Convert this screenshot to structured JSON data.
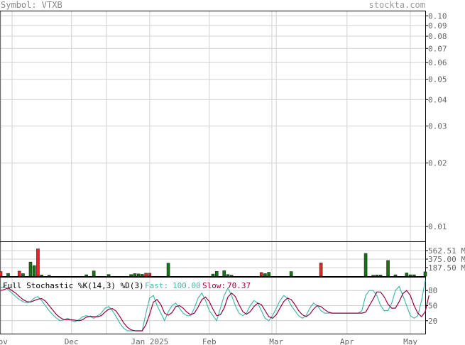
{
  "header": {
    "symbol_label": "Symbol: VTXB",
    "site": "stockta.com"
  },
  "chart_data": {
    "type": "line",
    "title": "Symbol: VTXB",
    "price_panel": {
      "scale": "log",
      "ylim": [
        0.0085,
        0.105
      ],
      "tick_labels": [
        "0.10",
        "0.09",
        "0.08",
        "0.07",
        "0.06",
        "0.05",
        "0.04",
        "0.03",
        "0.02",
        "0.01"
      ],
      "tick_values": [
        0.1,
        0.09,
        0.08,
        0.07,
        0.06,
        0.05,
        0.04,
        0.03,
        0.02,
        0.01
      ],
      "grid": true
    },
    "volume_panel": {
      "type": "bar",
      "ylim": [
        0,
        750
      ],
      "tick_labels": [
        "562.51 M",
        "375.00 M",
        "187.50 M"
      ],
      "tick_values": [
        562.51,
        375.0,
        187.5
      ],
      "bars": [
        {
          "d": 0,
          "v": 100,
          "c": "r"
        },
        {
          "d": 2,
          "v": 60,
          "c": "g"
        },
        {
          "d": 5,
          "v": 110,
          "c": "r"
        },
        {
          "d": 6,
          "v": 55,
          "c": "g"
        },
        {
          "d": 8,
          "v": 310,
          "c": "g"
        },
        {
          "d": 9,
          "v": 230,
          "c": "g"
        },
        {
          "d": 10,
          "v": 600,
          "c": "r"
        },
        {
          "d": 11,
          "v": 25,
          "c": "g"
        },
        {
          "d": 13,
          "v": 20,
          "c": "g"
        },
        {
          "d": 23,
          "v": 30,
          "c": "g"
        },
        {
          "d": 25,
          "v": 115,
          "c": "g"
        },
        {
          "d": 29,
          "v": 35,
          "c": "g"
        },
        {
          "d": 35,
          "v": 35,
          "c": "g"
        },
        {
          "d": 36,
          "v": 55,
          "c": "g"
        },
        {
          "d": 37,
          "v": 50,
          "c": "g"
        },
        {
          "d": 38,
          "v": 40,
          "c": "g"
        },
        {
          "d": 39,
          "v": 65,
          "c": "r"
        },
        {
          "d": 40,
          "v": 65,
          "c": "r"
        },
        {
          "d": 45,
          "v": 285,
          "c": "g"
        },
        {
          "d": 57,
          "v": 45,
          "c": "g"
        },
        {
          "d": 58,
          "v": 105,
          "c": "g"
        },
        {
          "d": 60,
          "v": 120,
          "c": "g"
        },
        {
          "d": 61,
          "v": 35,
          "c": "g"
        },
        {
          "d": 62,
          "v": 20,
          "c": "g"
        },
        {
          "d": 70,
          "v": 80,
          "c": "r"
        },
        {
          "d": 71,
          "v": 55,
          "c": "g"
        },
        {
          "d": 72,
          "v": 85,
          "c": "g"
        },
        {
          "d": 78,
          "v": 100,
          "c": "g"
        },
        {
          "d": 86,
          "v": 290,
          "c": "r"
        },
        {
          "d": 98,
          "v": 500,
          "c": "g"
        },
        {
          "d": 100,
          "v": 20,
          "c": "g"
        },
        {
          "d": 101,
          "v": 25,
          "c": "g"
        },
        {
          "d": 102,
          "v": 25,
          "c": "g"
        },
        {
          "d": 104,
          "v": 345,
          "c": "g"
        },
        {
          "d": 106,
          "v": 30,
          "c": "g"
        },
        {
          "d": 109,
          "v": 70,
          "c": "g"
        },
        {
          "d": 110,
          "v": 30,
          "c": "g"
        },
        {
          "d": 111,
          "v": 30,
          "c": "g"
        },
        {
          "d": 114,
          "v": 95,
          "c": "g"
        }
      ]
    },
    "stochastic_panel": {
      "title": "Full Stochastic %K(14,3) %D(3)",
      "fast_label": "Fast:",
      "fast_value": "100.00",
      "slow_label": "Slow:",
      "slow_value": "70.37",
      "ylim": [
        0,
        100
      ],
      "tick_labels": [
        "80",
        "50",
        "20"
      ],
      "tick_values": [
        80,
        50,
        20
      ],
      "fast_color": "#44bbaa",
      "slow_color": "#990044",
      "series": [
        {
          "name": "Fast",
          "values": [
            85,
            88,
            82,
            75,
            68,
            62,
            58,
            55,
            58,
            65,
            68,
            60,
            50,
            40,
            32,
            25,
            20,
            22,
            25,
            20,
            18,
            22,
            28,
            30,
            28,
            25,
            30,
            35,
            45,
            48,
            40,
            28,
            15,
            5,
            0,
            0,
            0,
            0,
            0,
            35,
            65,
            70,
            50,
            35,
            20,
            38,
            50,
            55,
            45,
            35,
            30,
            30,
            45,
            65,
            75,
            60,
            40,
            30,
            20,
            45,
            70,
            85,
            70,
            50,
            35,
            30,
            35,
            50,
            60,
            55,
            40,
            25,
            20,
            30,
            45,
            60,
            70,
            65,
            50,
            40,
            30,
            25,
            30,
            45,
            55,
            50,
            40,
            35,
            35,
            35,
            35,
            35,
            35,
            35,
            35,
            35,
            35,
            40,
            70,
            80,
            80,
            70,
            50,
            40,
            40,
            55,
            80,
            88,
            70,
            50,
            30,
            25,
            30,
            60,
            100
          ]
        },
        {
          "name": "Slow",
          "values": [
            80,
            82,
            85,
            80,
            75,
            68,
            62,
            58,
            57,
            60,
            63,
            64,
            59,
            50,
            41,
            32,
            26,
            22,
            22,
            22,
            21,
            20,
            22,
            27,
            29,
            28,
            28,
            30,
            37,
            43,
            44,
            39,
            28,
            16,
            7,
            2,
            0,
            0,
            0,
            12,
            33,
            57,
            62,
            52,
            35,
            31,
            36,
            48,
            50,
            45,
            37,
            32,
            35,
            47,
            62,
            67,
            58,
            43,
            30,
            32,
            45,
            67,
            75,
            68,
            52,
            38,
            33,
            38,
            48,
            55,
            52,
            40,
            28,
            25,
            32,
            45,
            58,
            65,
            62,
            52,
            40,
            32,
            28,
            33,
            43,
            50,
            48,
            42,
            37,
            35,
            35,
            35,
            35,
            35,
            35,
            35,
            35,
            35,
            37,
            50,
            63,
            77,
            77,
            67,
            53,
            45,
            45,
            58,
            74,
            80,
            70,
            50,
            35,
            28,
            38,
            70
          ]
        }
      ]
    },
    "x_axis": {
      "labels": [
        "Nov",
        "Dec",
        "Jan 2025",
        "Feb",
        "Mar",
        "Apr",
        "May"
      ],
      "day_index": [
        0,
        19,
        40,
        56,
        74,
        93,
        110
      ]
    },
    "grid": true
  }
}
